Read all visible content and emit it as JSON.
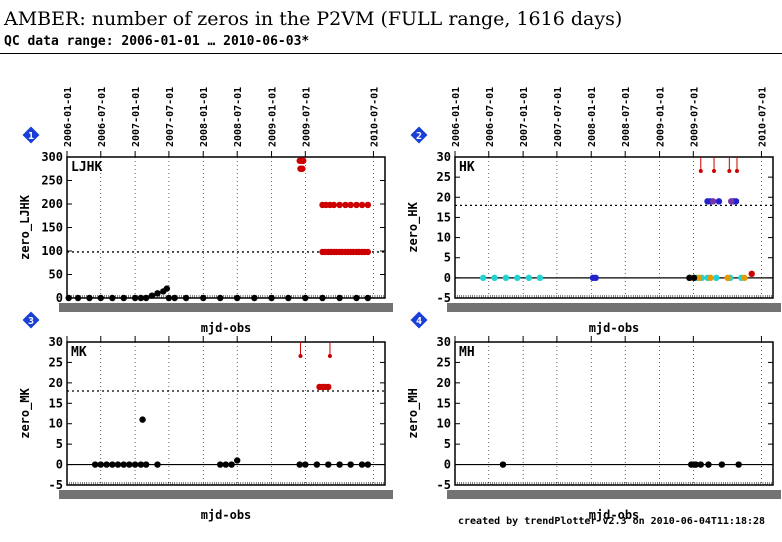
{
  "header": {
    "title": "AMBER: number of zeros in the P2VM (FULL range, 1616 days)",
    "subtitle": "QC data range: 2006-01-01 … 2010-06-03*"
  },
  "footer": {
    "credit": "created by trendPlotter v2.3 on 2010-06-04T11:18:28"
  },
  "colors": {
    "black": "#000000",
    "red": "#cc0000",
    "cyan": "#22d3d3",
    "blue": "#2222cc",
    "purple": "#7733aa",
    "orange": "#e69a00",
    "badge": "#1a3fd6"
  },
  "chart_data": [
    {
      "panel": "1",
      "type": "scatter",
      "label": "LJHK",
      "ylabel": "zero_LJHK",
      "xlabel": "mjd-obs",
      "ylim": [
        0,
        300
      ],
      "yticks": [
        0,
        50,
        100,
        150,
        200,
        250,
        300
      ],
      "xlim": [
        "2006-01-01",
        "2010-09-01"
      ],
      "date_ticks": [
        "2006-01-01",
        "2006-07-01",
        "2007-01-01",
        "2007-07-01",
        "2008-01-01",
        "2008-07-01",
        "2009-01-01",
        "2009-07-01",
        "2010-07-01"
      ],
      "reference_line": 98,
      "series": [
        {
          "color": "black",
          "x": [
            "2006-01-10",
            "2006-03-01",
            "2006-05-01",
            "2006-07-01",
            "2006-09-01",
            "2006-11-01",
            "2007-01-01",
            "2007-02-01",
            "2007-03-01",
            "2007-04-01",
            "2007-05-01",
            "2007-06-01",
            "2007-06-20",
            "2007-07-01",
            "2007-08-01",
            "2007-10-01",
            "2008-01-01",
            "2008-04-01",
            "2008-07-01",
            "2008-10-01",
            "2009-01-01",
            "2009-04-01",
            "2009-07-01",
            "2009-10-01",
            "2010-01-01",
            "2010-04-01",
            "2010-06-01"
          ],
          "y": [
            0,
            0,
            0,
            0,
            0,
            0,
            0,
            0,
            0,
            5,
            10,
            14,
            20,
            0,
            0,
            0,
            0,
            0,
            0,
            0,
            0,
            0,
            0,
            0,
            0,
            0,
            0
          ]
        },
        {
          "color": "red",
          "x": [
            "2009-06-01",
            "2009-06-10",
            "2009-06-20",
            "2009-10-01",
            "2009-10-15",
            "2009-11-01",
            "2009-11-15",
            "2009-12-01",
            "2009-12-15",
            "2010-01-01",
            "2010-01-15",
            "2010-02-01",
            "2010-02-15",
            "2010-03-01",
            "2010-03-15",
            "2010-04-01",
            "2010-04-15",
            "2010-05-01",
            "2010-05-15",
            "2010-06-01",
            "2009-10-01",
            "2009-10-20",
            "2009-11-10",
            "2009-12-01",
            "2010-01-01",
            "2010-02-01",
            "2010-03-01",
            "2010-04-01",
            "2010-05-01",
            "2010-06-01",
            "2009-06-05",
            "2009-06-15"
          ],
          "y": [
            292,
            292,
            292,
            98,
            98,
            98,
            98,
            98,
            98,
            98,
            98,
            98,
            98,
            98,
            98,
            98,
            98,
            98,
            98,
            98,
            198,
            198,
            198,
            198,
            198,
            198,
            198,
            198,
            198,
            198,
            275,
            275
          ]
        }
      ]
    },
    {
      "panel": "2",
      "type": "scatter",
      "label": "HK",
      "ylabel": "zero_HK",
      "xlabel": "mjd-obs",
      "ylim": [
        -5,
        30
      ],
      "yticks": [
        -5,
        0,
        5,
        10,
        15,
        20,
        25,
        30
      ],
      "xlim": [
        "2006-01-01",
        "2010-09-01"
      ],
      "date_ticks": [
        "2006-01-01",
        "2006-07-01",
        "2007-01-01",
        "2007-07-01",
        "2008-01-01",
        "2008-07-01",
        "2009-01-01",
        "2009-07-01",
        "2010-07-01"
      ],
      "reference_line": 18,
      "series": [
        {
          "color": "cyan",
          "x": [
            "2006-06-01",
            "2006-08-01",
            "2006-10-01",
            "2006-12-01",
            "2007-02-01",
            "2007-04-01",
            "2009-07-20",
            "2009-08-15",
            "2009-09-15",
            "2009-11-01",
            "2010-01-15",
            "2010-03-15"
          ],
          "y": [
            0,
            0,
            0,
            0,
            0,
            0,
            0,
            0,
            0,
            0,
            0,
            0
          ]
        },
        {
          "color": "blue",
          "x": [
            "2008-01-10",
            "2008-01-25",
            "2009-09-15",
            "2009-10-01",
            "2009-11-15",
            "2010-02-01",
            "2010-02-15"
          ],
          "y": [
            0,
            0,
            19,
            19,
            19,
            19,
            19
          ]
        },
        {
          "color": "purple",
          "x": [
            "2009-10-15",
            "2010-01-20"
          ],
          "y": [
            19,
            19
          ]
        },
        {
          "color": "orange",
          "x": [
            "2009-06-15",
            "2009-08-01",
            "2009-10-01",
            "2010-01-01",
            "2010-04-01"
          ],
          "y": [
            0,
            0,
            0,
            0,
            0
          ]
        },
        {
          "color": "red",
          "x": [
            "2009-08-10",
            "2009-10-20",
            "2010-01-10",
            "2010-02-20",
            "2010-05-10"
          ],
          "y": [
            30,
            30,
            30,
            30,
            1
          ]
        },
        {
          "color": "black",
          "x": [
            "2009-06-10",
            "2009-07-05"
          ],
          "y": [
            0,
            0
          ]
        }
      ]
    },
    {
      "panel": "3",
      "type": "scatter",
      "label": "MK",
      "ylabel": "zero_MK",
      "xlabel": "mjd-obs",
      "ylim": [
        -5,
        30
      ],
      "yticks": [
        -5,
        0,
        5,
        10,
        15,
        20,
        25,
        30
      ],
      "xlim": [
        "2006-01-01",
        "2010-09-01"
      ],
      "reference_line": 18,
      "series": [
        {
          "color": "black",
          "x": [
            "2006-06-01",
            "2006-07-01",
            "2006-08-01",
            "2006-09-01",
            "2006-10-01",
            "2006-11-01",
            "2006-12-01",
            "2007-01-01",
            "2007-02-01",
            "2007-02-10",
            "2007-03-01",
            "2007-05-01",
            "2008-04-01",
            "2008-05-01",
            "2008-06-01",
            "2008-07-01",
            "2009-06-01",
            "2009-07-01",
            "2009-09-01",
            "2009-11-01",
            "2010-01-01",
            "2010-03-01",
            "2010-05-01",
            "2010-06-01"
          ],
          "y": [
            0,
            0,
            0,
            0,
            0,
            0,
            0,
            0,
            0,
            11,
            0,
            0,
            0,
            0,
            0,
            1,
            0,
            0,
            0,
            0,
            0,
            0,
            0,
            0
          ]
        },
        {
          "color": "red",
          "x": [
            "2009-06-05",
            "2009-09-15",
            "2009-10-01",
            "2009-10-15",
            "2009-11-01",
            "2009-11-10"
          ],
          "y": [
            30,
            19,
            19,
            19,
            19,
            30
          ]
        }
      ]
    },
    {
      "panel": "4",
      "type": "scatter",
      "label": "MH",
      "ylabel": "zero_MH",
      "xlabel": "mjd-obs",
      "ylim": [
        -5,
        30
      ],
      "yticks": [
        -5,
        0,
        5,
        10,
        15,
        20,
        25,
        30
      ],
      "xlim": [
        "2006-01-01",
        "2010-09-01"
      ],
      "series": [
        {
          "color": "black",
          "x": [
            "2006-09-15",
            "2009-06-20",
            "2009-07-05",
            "2009-07-15",
            "2009-08-10",
            "2009-09-20",
            "2009-12-01",
            "2010-03-01"
          ],
          "y": [
            0,
            0,
            0,
            0,
            0,
            0,
            0,
            0
          ]
        }
      ]
    }
  ]
}
